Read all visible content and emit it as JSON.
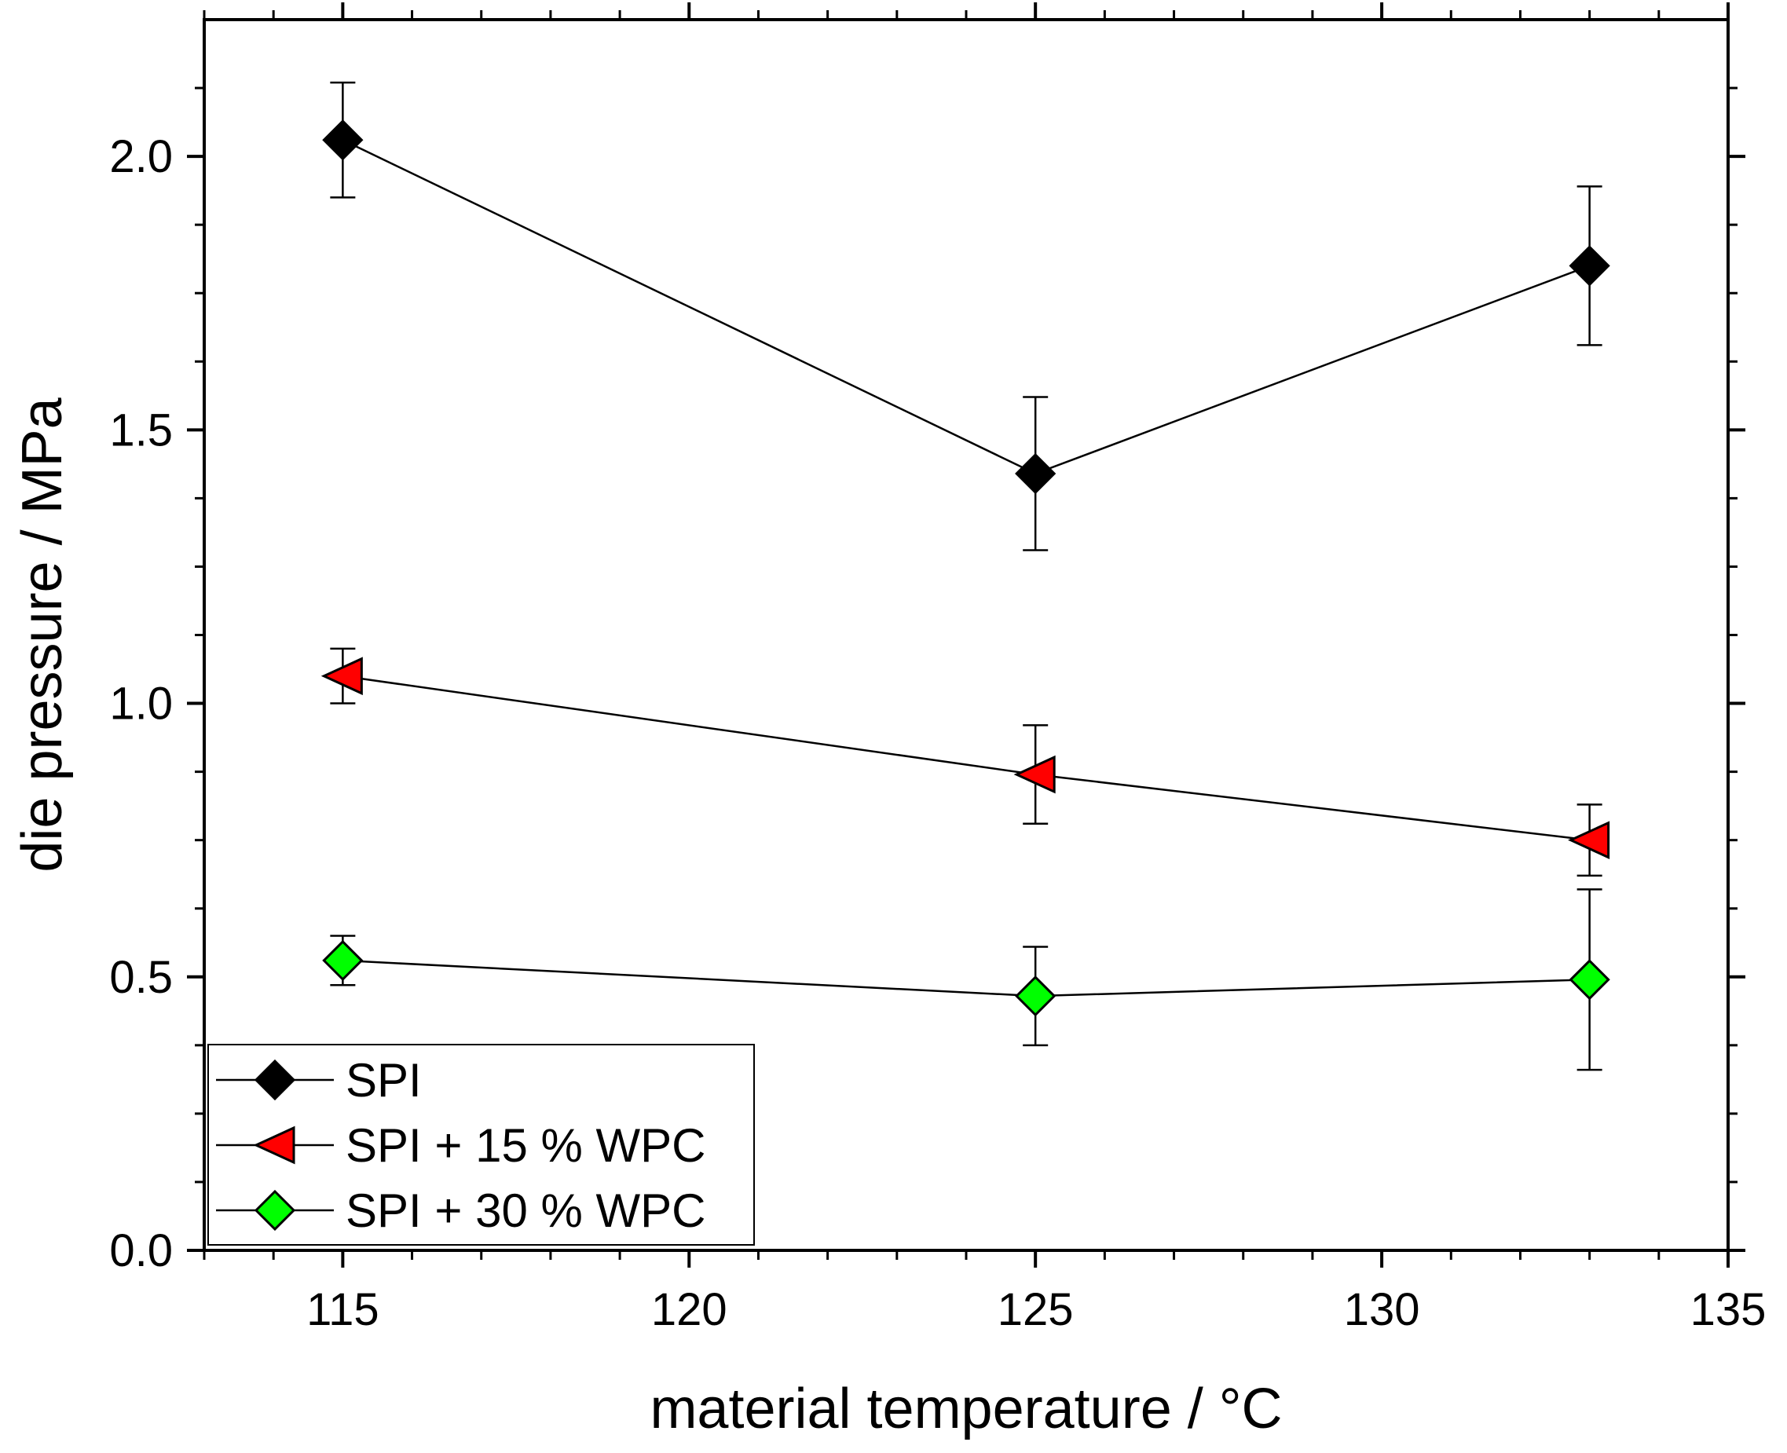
{
  "chart_data": {
    "type": "line",
    "title": "",
    "xlabel": "material temperature / °C",
    "ylabel": "die pressure / MPa",
    "xlim": [
      113,
      135
    ],
    "ylim": [
      0,
      2.25
    ],
    "x_ticks": [
      115,
      120,
      125,
      130,
      135
    ],
    "x_tick_labels": [
      "115",
      "120",
      "125",
      "130",
      "135"
    ],
    "y_ticks": [
      0.0,
      0.5,
      1.0,
      1.5,
      2.0
    ],
    "y_tick_labels": [
      "0.0",
      "0.5",
      "1.0",
      "1.5",
      "2.0"
    ],
    "grid": false,
    "legend_position": "bottom-left",
    "series": [
      {
        "name": "SPI",
        "marker": "diamond",
        "color": "#000000",
        "x": [
          115,
          125,
          133
        ],
        "values": [
          2.03,
          1.42,
          1.8
        ],
        "errors": [
          0.105,
          0.14,
          0.145
        ]
      },
      {
        "name": "SPI + 15 % WPC",
        "marker": "triangle-left",
        "color": "#ff0000",
        "x": [
          115,
          125,
          133
        ],
        "values": [
          1.05,
          0.87,
          0.75
        ],
        "errors": [
          0.05,
          0.09,
          0.065
        ]
      },
      {
        "name": "SPI + 30 % WPC",
        "marker": "diamond",
        "color": "#00ff00",
        "x": [
          115,
          125,
          133
        ],
        "values": [
          0.53,
          0.465,
          0.495
        ],
        "errors": [
          0.045,
          0.09,
          0.165
        ]
      }
    ]
  }
}
